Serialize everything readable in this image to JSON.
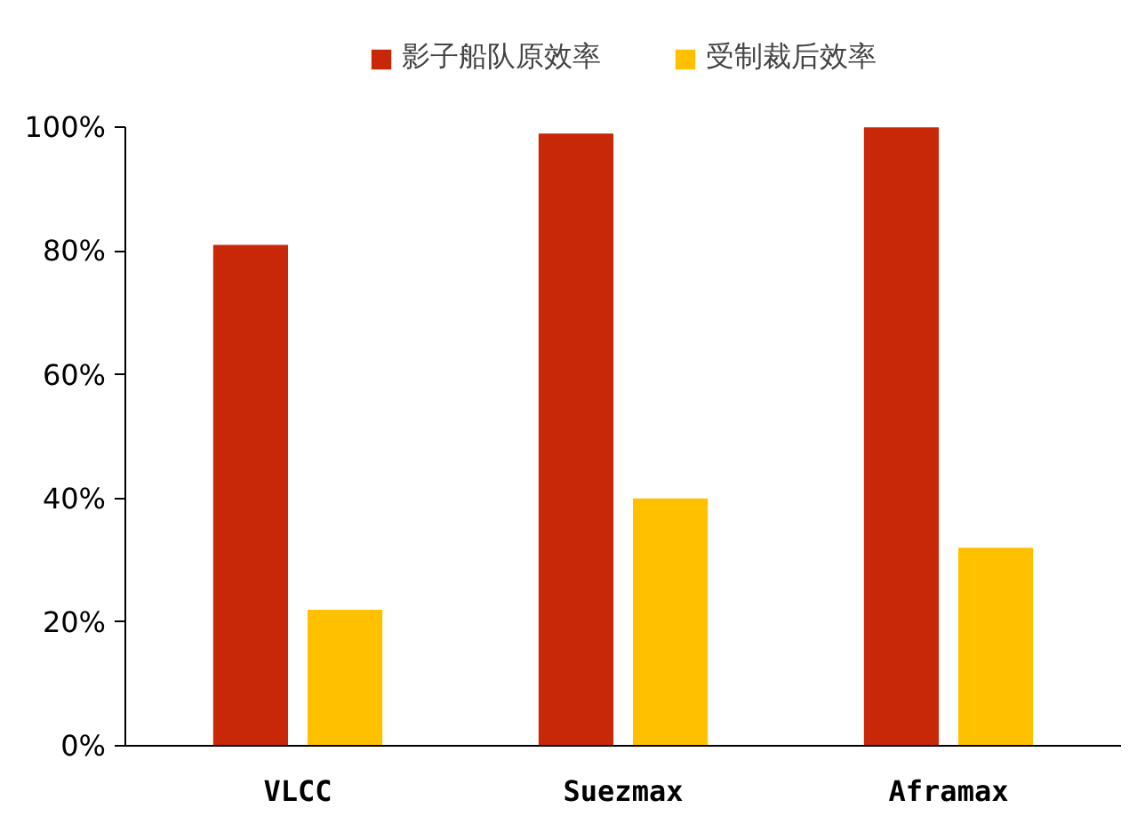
{
  "chart_data": {
    "type": "bar",
    "categories": [
      "VLCC",
      "Suezmax",
      "Aframax"
    ],
    "series": [
      {
        "name": "影子船队原效率",
        "color": "#c82808",
        "values": [
          81,
          99,
          100
        ]
      },
      {
        "name": "受制裁后效率",
        "color": "#ffc000",
        "values": [
          22,
          40,
          32
        ]
      }
    ],
    "ylim": [
      0,
      100
    ],
    "yticks": [
      {
        "value": 0,
        "label": "0%"
      },
      {
        "value": 20,
        "label": "20%"
      },
      {
        "value": 40,
        "label": "40%"
      },
      {
        "value": 60,
        "label": "60%"
      },
      {
        "value": 80,
        "label": "80%"
      },
      {
        "value": 100,
        "label": "100%"
      }
    ],
    "grid": false,
    "legend": "top"
  }
}
